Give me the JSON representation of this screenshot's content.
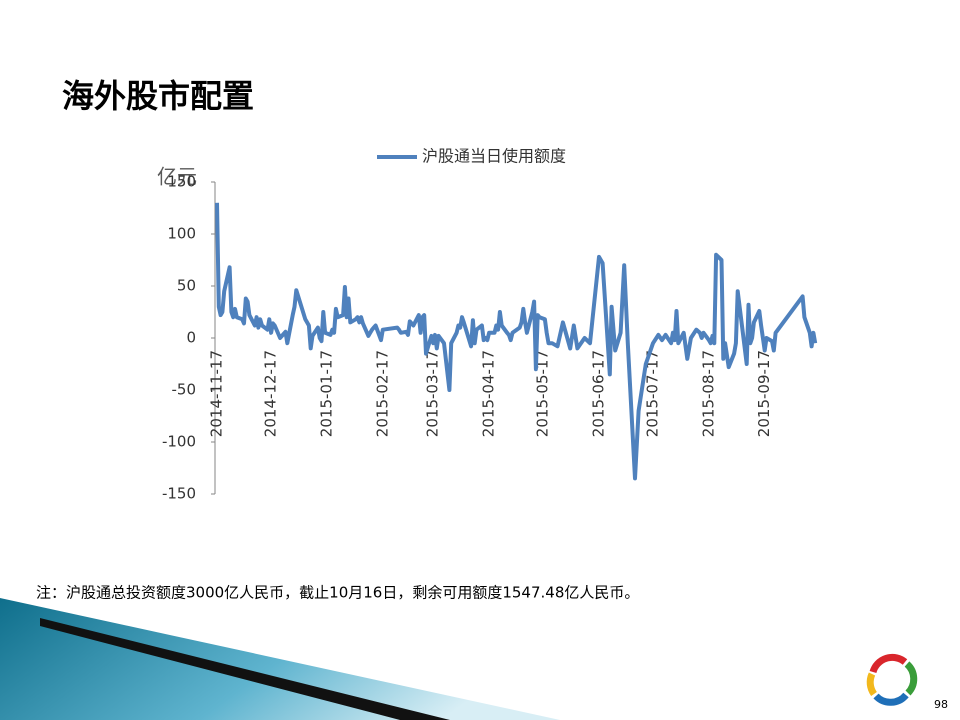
{
  "slide": {
    "title": "海外股市配置",
    "note": "注：沪股通总投资额度3000亿人民币，截止10月16日，剩余可用额度1547.48亿人民币。",
    "page": "98"
  },
  "chart_data": {
    "type": "line",
    "y_unit": "亿元",
    "x": [
      "2014-11-17",
      "2014-11-18",
      "2014-11-19",
      "2014-11-20",
      "2014-11-21",
      "2014-11-24",
      "2014-11-25",
      "2014-11-26",
      "2014-11-27",
      "2014-11-28",
      "2014-12-01",
      "2014-12-02",
      "2014-12-03",
      "2014-12-04",
      "2014-12-05",
      "2014-12-08",
      "2014-12-09",
      "2014-12-10",
      "2014-12-11",
      "2014-12-12",
      "2014-12-15",
      "2014-12-16",
      "2014-12-17",
      "2014-12-18",
      "2014-12-19",
      "2014-12-22",
      "2014-12-23",
      "2014-12-24",
      "2014-12-25",
      "2014-12-26",
      "2014-12-29",
      "2014-12-30",
      "2014-12-31",
      "2015-01-05",
      "2015-01-06",
      "2015-01-07",
      "2015-01-08",
      "2015-01-09",
      "2015-01-12",
      "2015-01-13",
      "2015-01-14",
      "2015-01-15",
      "2015-01-16",
      "2015-01-19",
      "2015-01-20",
      "2015-01-21",
      "2015-01-22",
      "2015-01-23",
      "2015-01-26",
      "2015-01-27",
      "2015-01-28",
      "2015-01-29",
      "2015-01-30",
      "2015-02-02",
      "2015-02-03",
      "2015-02-04",
      "2015-02-05",
      "2015-02-06",
      "2015-02-09",
      "2015-02-10",
      "2015-02-11",
      "2015-02-12",
      "2015-02-13",
      "2015-02-16",
      "2015-02-17",
      "2015-02-25",
      "2015-02-26",
      "2015-02-27",
      "2015-03-02",
      "2015-03-03",
      "2015-03-04",
      "2015-03-05",
      "2015-03-06",
      "2015-03-09",
      "2015-03-10",
      "2015-03-11",
      "2015-03-12",
      "2015-03-13",
      "2015-03-16",
      "2015-03-17",
      "2015-03-18",
      "2015-03-19",
      "2015-03-20",
      "2015-03-23",
      "2015-03-24",
      "2015-03-25",
      "2015-03-26",
      "2015-03-27",
      "2015-03-30",
      "2015-03-31",
      "2015-04-01",
      "2015-04-02",
      "2015-04-03",
      "2015-04-07",
      "2015-04-08",
      "2015-04-09",
      "2015-04-10",
      "2015-04-13",
      "2015-04-14",
      "2015-04-15",
      "2015-04-16",
      "2015-04-17",
      "2015-04-20",
      "2015-04-21",
      "2015-04-22",
      "2015-04-23",
      "2015-04-24",
      "2015-04-27",
      "2015-04-28",
      "2015-04-29",
      "2015-04-30",
      "2015-05-04",
      "2015-05-05",
      "2015-05-06",
      "2015-05-07",
      "2015-05-08",
      "2015-05-11",
      "2015-05-12",
      "2015-05-13",
      "2015-05-14",
      "2015-05-15",
      "2015-05-18",
      "2015-05-19",
      "2015-05-20",
      "2015-05-22",
      "2015-05-25",
      "2015-05-28",
      "2015-06-01",
      "2015-06-03",
      "2015-06-05",
      "2015-06-09",
      "2015-06-12",
      "2015-06-17",
      "2015-06-19",
      "2015-06-23",
      "2015-06-24",
      "2015-06-26",
      "2015-06-29",
      "2015-07-01",
      "2015-07-03",
      "2015-07-07",
      "2015-07-09",
      "2015-07-13",
      "2015-07-15",
      "2015-07-17",
      "2015-07-20",
      "2015-07-22",
      "2015-07-24",
      "2015-07-27",
      "2015-07-28",
      "2015-07-29",
      "2015-07-30",
      "2015-07-31",
      "2015-08-03",
      "2015-08-05",
      "2015-08-07",
      "2015-08-10",
      "2015-08-12",
      "2015-08-13",
      "2015-08-14",
      "2015-08-17",
      "2015-08-18",
      "2015-08-19",
      "2015-08-20",
      "2015-08-21",
      "2015-08-24",
      "2015-08-25",
      "2015-08-26",
      "2015-08-28",
      "2015-08-31",
      "2015-09-01",
      "2015-09-02",
      "2015-09-07",
      "2015-09-08",
      "2015-09-09",
      "2015-09-10",
      "2015-09-11",
      "2015-09-14",
      "2015-09-15",
      "2015-09-16",
      "2015-09-17",
      "2015-09-18",
      "2015-09-21",
      "2015-09-22",
      "2015-09-23",
      "2015-10-08",
      "2015-10-09",
      "2015-10-12",
      "2015-10-13",
      "2015-10-14",
      "2015-10-15"
    ],
    "series": [
      {
        "name": "沪股通当日使用额度",
        "color": "#4f81bd",
        "values": [
          130,
          30,
          22,
          25,
          45,
          68,
          25,
          20,
          28,
          20,
          18,
          14,
          38,
          35,
          22,
          12,
          20,
          10,
          18,
          12,
          8,
          18,
          5,
          14,
          12,
          0,
          2,
          4,
          6,
          -5,
          22,
          30,
          46,
          18,
          15,
          12,
          -10,
          2,
          10,
          0,
          -3,
          25,
          5,
          3,
          8,
          5,
          28,
          20,
          22,
          49,
          20,
          38,
          15,
          18,
          20,
          15,
          20,
          14,
          2,
          5,
          8,
          10,
          12,
          -2,
          8,
          10,
          8,
          5,
          6,
          3,
          16,
          14,
          12,
          22,
          5,
          20,
          22,
          -15,
          2,
          -5,
          3,
          -10,
          2,
          -5,
          -20,
          -35,
          -50,
          -5,
          5,
          12,
          10,
          20,
          15,
          -8,
          17,
          -5,
          8,
          12,
          -2,
          0,
          -2,
          5,
          5,
          12,
          8,
          25,
          12,
          5,
          3,
          -2,
          5,
          10,
          15,
          28,
          15,
          5,
          25,
          35,
          -30,
          22,
          20,
          18,
          5,
          -5,
          -5,
          -8,
          15,
          -10,
          12,
          -10,
          0,
          -5,
          78,
          72,
          -35,
          30,
          -12,
          5,
          70,
          -5,
          -135,
          -70,
          -25,
          -15,
          -5,
          3,
          -2,
          3,
          -5,
          5,
          -2,
          26,
          -5,
          5,
          -20,
          0,
          8,
          5,
          0,
          5,
          -2,
          -5,
          2,
          -5,
          80,
          75,
          -20,
          -5,
          -28,
          -15,
          -5,
          45,
          -25,
          32,
          -5,
          0,
          15,
          26,
          12,
          0,
          -12,
          0,
          -3,
          -12,
          5,
          40,
          20,
          5,
          -8,
          5,
          -5
        ]
      }
    ],
    "xlim": [
      "2014-11-17",
      "2015-10-16"
    ],
    "xticks": [
      "2014-11-17",
      "2014-12-17",
      "2015-01-17",
      "2015-02-17",
      "2015-03-17",
      "2015-04-17",
      "2015-05-17",
      "2015-06-17",
      "2015-07-17",
      "2015-08-17",
      "2015-09-17"
    ],
    "ylim": [
      -150,
      150
    ],
    "yticks": [
      150,
      100,
      50,
      0,
      -50,
      -100,
      -150
    ],
    "grid": false
  }
}
